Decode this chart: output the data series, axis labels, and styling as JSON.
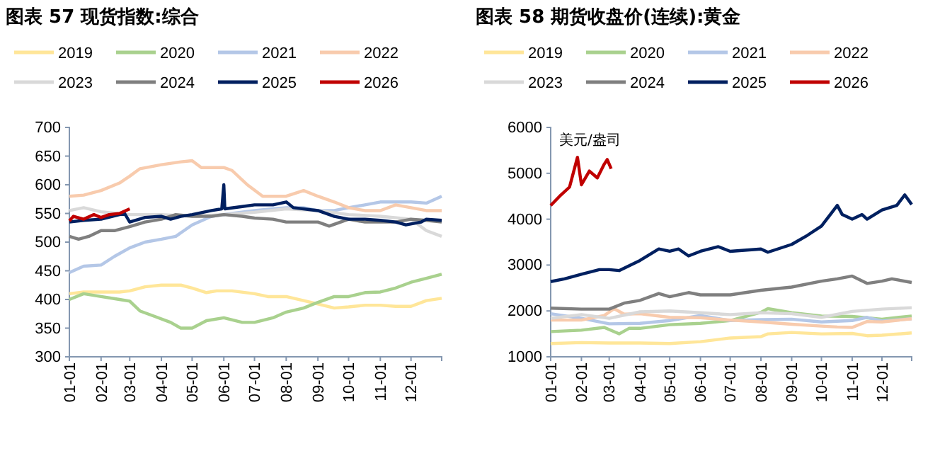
{
  "chart_data": [
    {
      "type": "line",
      "title": "图表 57 现货指数:综合",
      "legend": "top",
      "grid": false,
      "marker": "none",
      "line_style": "solid",
      "xlim": [
        "--01-01",
        "--12-31"
      ],
      "xticks": [
        {
          "value": "--01-01",
          "label": "01-01"
        },
        {
          "value": "--02-01",
          "label": "02-01"
        },
        {
          "value": "--03-01",
          "label": "03-01"
        },
        {
          "value": "--04-01",
          "label": "04-01"
        },
        {
          "value": "--05-01",
          "label": "05-01"
        },
        {
          "value": "--06-01",
          "label": "06-01"
        },
        {
          "value": "--07-01",
          "label": "07-01"
        },
        {
          "value": "--08-01",
          "label": "08-01"
        },
        {
          "value": "--09-01",
          "label": "09-01"
        },
        {
          "value": "--10-01",
          "label": "10-01"
        },
        {
          "value": "--11-01",
          "label": "11-01"
        },
        {
          "value": "--12-01",
          "label": "12-01"
        }
      ],
      "ylim": [
        300,
        700
      ],
      "yticks": [
        300,
        350,
        400,
        450,
        500,
        550,
        600,
        650,
        700
      ],
      "series": [
        {
          "name": "2019",
          "color": "#ffe699",
          "x": [
            "--01-01",
            "--01-15",
            "--02-01",
            "--02-19",
            "--03-01",
            "--03-16",
            "--04-01",
            "--04-20",
            "--05-01",
            "--05-15",
            "--05-25",
            "--06-09",
            "--07-01",
            "--07-14",
            "--08-01",
            "--08-18",
            "--09-01",
            "--09-17",
            "--10-01",
            "--10-17",
            "--11-01",
            "--11-16",
            "--12-01",
            "--12-16",
            "--12-31"
          ],
          "values": [
            410,
            413,
            413,
            413,
            415,
            422,
            425,
            425,
            420,
            412,
            415,
            415,
            410,
            405,
            405,
            398,
            392,
            385,
            387,
            390,
            390,
            388,
            388,
            398,
            402
          ]
        },
        {
          "name": "2020",
          "color": "#a9d18e",
          "x": [
            "--01-01",
            "--01-15",
            "--02-01",
            "--02-19",
            "--03-01",
            "--03-11",
            "--03-26",
            "--04-10",
            "--04-20",
            "--05-01",
            "--05-15",
            "--06-01",
            "--06-19",
            "--07-01",
            "--07-19",
            "--08-01",
            "--08-18",
            "--09-01",
            "--09-17",
            "--10-01",
            "--10-17",
            "--11-01",
            "--11-16",
            "--12-01",
            "--12-16",
            "--12-31"
          ],
          "values": [
            400,
            410,
            405,
            400,
            397,
            380,
            370,
            360,
            350,
            350,
            363,
            368,
            360,
            360,
            368,
            378,
            385,
            395,
            405,
            405,
            412,
            413,
            420,
            430,
            437,
            444
          ]
        },
        {
          "name": "2021",
          "color": "#b4c7e7",
          "x": [
            "--01-01",
            "--01-15",
            "--02-01",
            "--02-14",
            "--03-01",
            "--03-16",
            "--04-01",
            "--04-15",
            "--05-01",
            "--05-20",
            "--06-09",
            "--07-01",
            "--07-19",
            "--08-01",
            "--08-18",
            "--09-01",
            "--09-17",
            "--10-01",
            "--10-17",
            "--11-01",
            "--11-16",
            "--12-01",
            "--12-16",
            "--12-31"
          ],
          "values": [
            447,
            458,
            460,
            475,
            490,
            500,
            505,
            510,
            530,
            545,
            550,
            555,
            558,
            560,
            560,
            555,
            555,
            560,
            565,
            570,
            570,
            570,
            568,
            580
          ]
        },
        {
          "name": "2022",
          "color": "#f8cbad",
          "x": [
            "--01-01",
            "--01-15",
            "--02-01",
            "--02-19",
            "--03-01",
            "--03-11",
            "--04-01",
            "--04-20",
            "--05-01",
            "--05-10",
            "--06-01",
            "--06-09",
            "--06-24",
            "--07-09",
            "--08-01",
            "--08-18",
            "--09-01",
            "--09-17",
            "--10-01",
            "--10-17",
            "--11-01",
            "--11-16",
            "--12-01",
            "--12-16",
            "--12-31"
          ],
          "values": [
            580,
            582,
            590,
            603,
            615,
            628,
            635,
            640,
            642,
            630,
            630,
            625,
            600,
            580,
            580,
            590,
            580,
            570,
            560,
            555,
            555,
            565,
            560,
            555,
            555
          ]
        },
        {
          "name": "2023",
          "color": "#d9d9d9",
          "x": [
            "--01-01",
            "--01-15",
            "--02-01",
            "--03-01",
            "--04-01",
            "--05-01",
            "--06-01",
            "--07-01",
            "--08-01",
            "--09-01",
            "--10-01",
            "--11-01",
            "--12-01",
            "--12-16",
            "--12-31"
          ],
          "values": [
            555,
            560,
            553,
            548,
            548,
            545,
            548,
            552,
            558,
            555,
            548,
            545,
            540,
            520,
            510
          ]
        },
        {
          "name": "2024",
          "color": "#7f7f7f",
          "x": [
            "--01-01",
            "--01-10",
            "--01-20",
            "--02-01",
            "--02-14",
            "--03-01",
            "--03-16",
            "--04-01",
            "--04-15",
            "--05-01",
            "--05-20",
            "--06-01",
            "--06-19",
            "--07-01",
            "--07-19",
            "--08-01",
            "--08-18",
            "--09-01",
            "--09-12",
            "--10-01",
            "--10-17",
            "--11-01",
            "--11-16",
            "--12-01",
            "--12-16",
            "--12-31"
          ],
          "values": [
            510,
            505,
            510,
            520,
            520,
            527,
            535,
            540,
            548,
            545,
            545,
            548,
            545,
            542,
            540,
            535,
            535,
            535,
            528,
            540,
            535,
            535,
            535,
            540,
            538,
            535
          ]
        },
        {
          "name": "2025",
          "color": "#002060",
          "x": [
            "--01-01",
            "--01-15",
            "--02-01",
            "--02-19",
            "--02-24",
            "--03-01",
            "--03-16",
            "--04-01",
            "--04-10",
            "--04-20",
            "--05-01",
            "--05-20",
            "--05-30",
            "--06-01",
            "--06-02",
            "--06-19",
            "--07-01",
            "--07-19",
            "--08-01",
            "--08-08",
            "--09-01",
            "--09-17",
            "--10-01",
            "--10-17",
            "--11-01",
            "--11-16",
            "--11-26",
            "--12-11",
            "--12-16",
            "--12-31"
          ],
          "values": [
            535,
            538,
            540,
            548,
            550,
            535,
            543,
            545,
            540,
            545,
            548,
            555,
            558,
            600,
            558,
            562,
            565,
            565,
            570,
            560,
            555,
            545,
            540,
            540,
            538,
            535,
            530,
            535,
            540,
            538
          ]
        },
        {
          "name": "2026",
          "color": "#c00000",
          "x": [
            "--01-01",
            "--01-05",
            "--01-15",
            "--01-25",
            "--02-01",
            "--02-09",
            "--02-19",
            "--03-01"
          ],
          "values": [
            537,
            545,
            540,
            548,
            543,
            548,
            550,
            558
          ]
        }
      ]
    },
    {
      "type": "line",
      "title": "图表 58 期货收盘价(连续):黄金",
      "legend": "top",
      "grid": false,
      "marker": "none",
      "line_style": "solid",
      "annotations": [
        "美元/盎司"
      ],
      "xlim": [
        "--01-01",
        "--12-31"
      ],
      "xticks": [
        {
          "value": "--01-01",
          "label": "01-01"
        },
        {
          "value": "--02-01",
          "label": "02-01"
        },
        {
          "value": "--03-01",
          "label": "03-01"
        },
        {
          "value": "--04-01",
          "label": "04-01"
        },
        {
          "value": "--05-01",
          "label": "05-01"
        },
        {
          "value": "--06-01",
          "label": "06-01"
        },
        {
          "value": "--07-01",
          "label": "07-01"
        },
        {
          "value": "--08-01",
          "label": "08-01"
        },
        {
          "value": "--09-01",
          "label": "09-01"
        },
        {
          "value": "--10-01",
          "label": "10-01"
        },
        {
          "value": "--11-01",
          "label": "11-01"
        },
        {
          "value": "--12-01",
          "label": "12-01"
        }
      ],
      "ylim": [
        1000,
        6000
      ],
      "yticks": [
        1000,
        2000,
        3000,
        4000,
        5000,
        6000
      ],
      "series": [
        {
          "name": "2019",
          "color": "#ffe699",
          "x": [
            "--01-01",
            "--02-01",
            "--03-01",
            "--04-01",
            "--05-01",
            "--06-01",
            "--07-01",
            "--08-01",
            "--08-08",
            "--09-01",
            "--10-01",
            "--11-01",
            "--11-16",
            "--12-01",
            "--12-31"
          ],
          "values": [
            1290,
            1310,
            1300,
            1300,
            1290,
            1330,
            1410,
            1440,
            1500,
            1530,
            1500,
            1510,
            1460,
            1470,
            1520
          ]
        },
        {
          "name": "2020",
          "color": "#a9d18e",
          "x": [
            "--01-01",
            "--02-01",
            "--02-24",
            "--03-11",
            "--03-21",
            "--04-01",
            "--05-01",
            "--06-01",
            "--07-01",
            "--08-01",
            "--08-08",
            "--09-01",
            "--10-01",
            "--11-01",
            "--12-01",
            "--12-31"
          ],
          "values": [
            1550,
            1580,
            1640,
            1500,
            1620,
            1620,
            1700,
            1730,
            1790,
            1970,
            2050,
            1960,
            1890,
            1880,
            1820,
            1890
          ]
        },
        {
          "name": "2021",
          "color": "#b4c7e7",
          "x": [
            "--01-01",
            "--02-01",
            "--03-01",
            "--04-01",
            "--05-01",
            "--06-01",
            "--07-01",
            "--08-01",
            "--09-01",
            "--10-01",
            "--11-01",
            "--11-16",
            "--12-01",
            "--12-31"
          ],
          "values": [
            1940,
            1840,
            1720,
            1730,
            1790,
            1900,
            1790,
            1810,
            1820,
            1760,
            1790,
            1860,
            1780,
            1830
          ]
        },
        {
          "name": "2022",
          "color": "#f8cbad",
          "x": [
            "--01-01",
            "--02-01",
            "--02-24",
            "--03-06",
            "--03-16",
            "--04-01",
            "--05-01",
            "--06-01",
            "--07-01",
            "--08-01",
            "--09-01",
            "--10-01",
            "--10-17",
            "--11-01",
            "--11-16",
            "--12-01",
            "--12-31"
          ],
          "values": [
            1800,
            1800,
            1900,
            2050,
            1930,
            1940,
            1860,
            1850,
            1800,
            1760,
            1710,
            1670,
            1650,
            1640,
            1770,
            1760,
            1830
          ]
        },
        {
          "name": "2023",
          "color": "#d9d9d9",
          "x": [
            "--01-01",
            "--02-01",
            "--03-01",
            "--04-01",
            "--05-01",
            "--06-01",
            "--07-01",
            "--08-01",
            "--09-01",
            "--10-01",
            "--11-01",
            "--12-01",
            "--12-31"
          ],
          "values": [
            1840,
            1920,
            1840,
            1980,
            2000,
            1960,
            1920,
            1960,
            1940,
            1860,
            1990,
            2040,
            2070
          ]
        },
        {
          "name": "2024",
          "color": "#7f7f7f",
          "x": [
            "--01-01",
            "--02-01",
            "--03-01",
            "--03-16",
            "--04-01",
            "--04-20",
            "--05-01",
            "--05-20",
            "--06-01",
            "--07-01",
            "--08-01",
            "--09-01",
            "--10-01",
            "--10-17",
            "--11-01",
            "--11-16",
            "--12-01",
            "--12-11",
            "--12-31"
          ],
          "values": [
            2060,
            2040,
            2040,
            2170,
            2230,
            2380,
            2310,
            2400,
            2350,
            2350,
            2450,
            2520,
            2650,
            2700,
            2760,
            2600,
            2650,
            2700,
            2620
          ]
        },
        {
          "name": "2025",
          "color": "#002060",
          "x": [
            "--01-01",
            "--01-15",
            "--02-01",
            "--02-19",
            "--03-01",
            "--03-11",
            "--04-01",
            "--04-20",
            "--05-01",
            "--05-10",
            "--05-20",
            "--06-01",
            "--06-19",
            "--07-01",
            "--08-01",
            "--08-08",
            "--09-01",
            "--09-17",
            "--10-01",
            "--10-17",
            "--10-22",
            "--11-01",
            "--11-11",
            "--11-16",
            "--12-01",
            "--12-16",
            "--12-24",
            "--12-31"
          ],
          "values": [
            2640,
            2700,
            2800,
            2900,
            2900,
            2880,
            3100,
            3350,
            3300,
            3350,
            3200,
            3300,
            3400,
            3300,
            3350,
            3280,
            3450,
            3650,
            3850,
            4300,
            4100,
            4000,
            4100,
            4000,
            4200,
            4300,
            4530,
            4320
          ]
        },
        {
          "name": "2026",
          "color": "#c00000",
          "x": [
            "--01-01",
            "--01-10",
            "--01-20",
            "--01-28",
            "--02-01",
            "--02-09",
            "--02-17",
            "--02-24",
            "--02-27",
            "--03-03"
          ],
          "values": [
            4300,
            4500,
            4700,
            5350,
            4750,
            5050,
            4900,
            5200,
            5300,
            5100
          ]
        }
      ]
    }
  ]
}
